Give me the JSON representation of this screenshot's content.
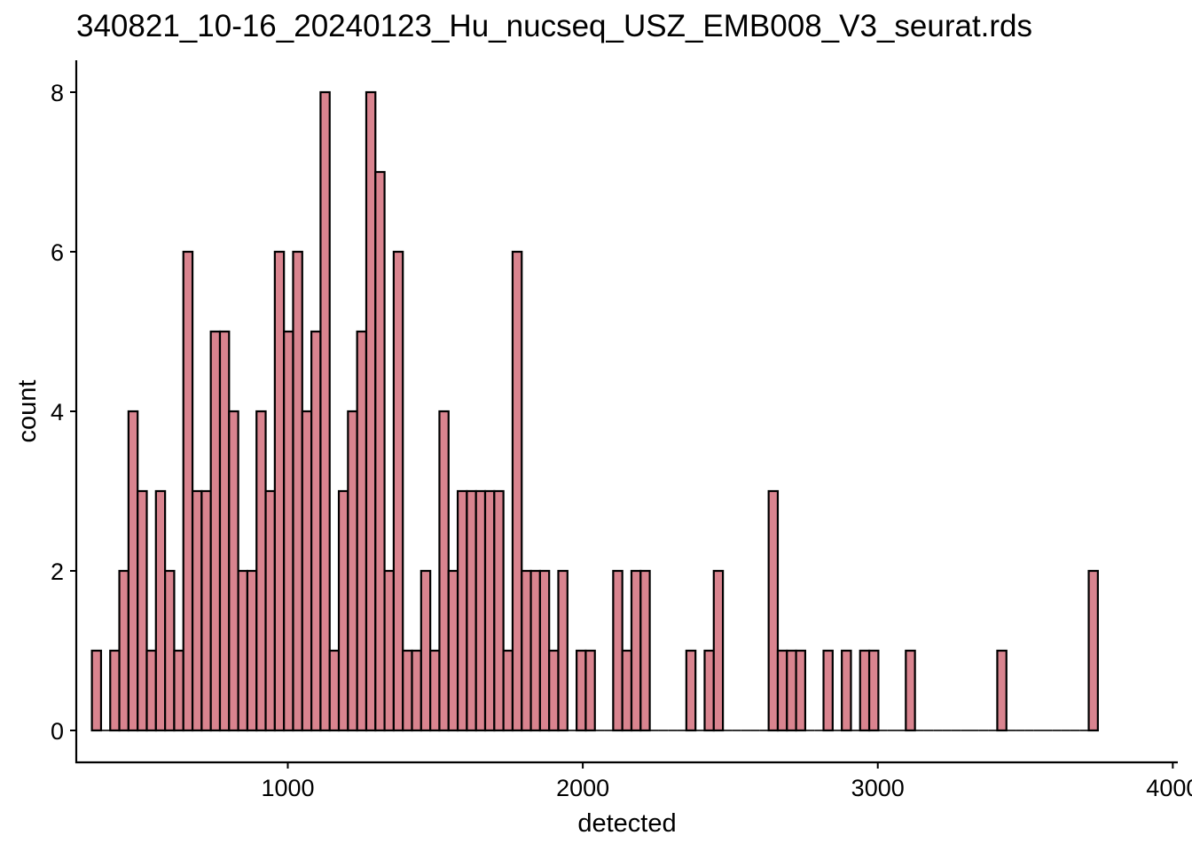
{
  "chart_data": {
    "type": "bar",
    "title": "340821_10-16_20240123_Hu_nucseq_USZ_EMB008_V3_seurat.rds",
    "xlabel": "detected",
    "ylabel": "count",
    "xlim": [
      283,
      4017
    ],
    "ylim": [
      -0.4,
      8.4
    ],
    "xticks": [
      1000,
      2000,
      3000,
      4000
    ],
    "xtick_labels": [
      "1000",
      "2000",
      "3000",
      "4000"
    ],
    "yticks": [
      0,
      2,
      4,
      6,
      8
    ],
    "ytick_labels": [
      "0",
      "2",
      "4",
      "6",
      "8"
    ],
    "bin_start": 336,
    "bin_width": 31,
    "values": [
      1,
      0,
      1,
      2,
      4,
      3,
      1,
      3,
      2,
      1,
      6,
      3,
      3,
      5,
      5,
      4,
      2,
      2,
      4,
      3,
      6,
      5,
      6,
      4,
      5,
      8,
      1,
      3,
      4,
      5,
      8,
      7,
      2,
      6,
      1,
      1,
      2,
      1,
      4,
      2,
      3,
      3,
      3,
      3,
      3,
      1,
      6,
      2,
      2,
      2,
      1,
      2,
      0,
      1,
      1,
      0,
      0,
      2,
      1,
      2,
      2,
      0,
      0,
      0,
      0,
      1,
      0,
      1,
      2,
      0,
      0,
      0,
      0,
      0,
      3,
      1,
      1,
      1,
      0,
      0,
      1,
      0,
      1,
      0,
      1,
      1,
      0,
      0,
      0,
      1,
      0,
      0,
      0,
      0,
      0,
      0,
      0,
      0,
      0,
      1,
      0,
      0,
      0,
      0,
      0,
      0,
      0,
      0,
      0,
      2
    ],
    "colors": {
      "fill": "#D9848F",
      "edge": "#000000"
    },
    "grid": false,
    "legend": "none"
  }
}
